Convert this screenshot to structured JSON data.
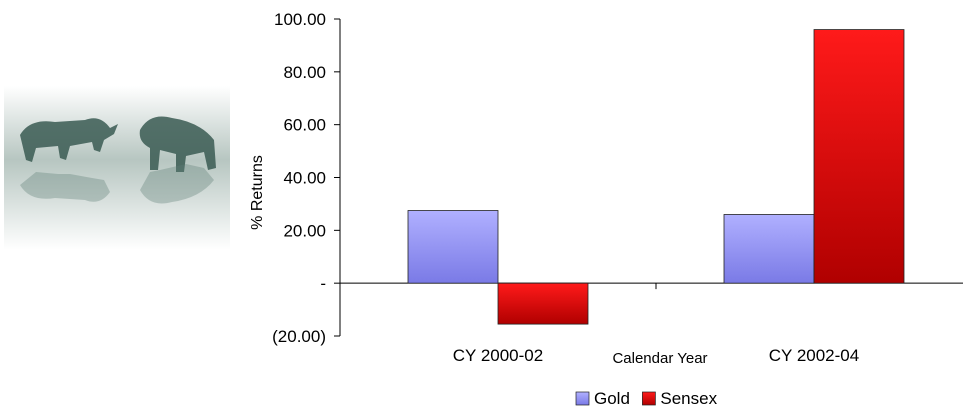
{
  "decor": {
    "image_name": "bull-and-bear-illustration",
    "image_colors": {
      "fade": "#f4f7f6",
      "mid": "#b7c6c1",
      "dark": "#3a5a52"
    }
  },
  "chart_data": {
    "type": "bar",
    "title": "",
    "xlabel": "Calendar Year",
    "ylabel": "% Returns",
    "categories": [
      "CY 2000-02",
      "CY 2002-04"
    ],
    "series": [
      {
        "name": "Gold",
        "values": [
          27.5,
          26.0
        ],
        "color_top": "#b0b0ff",
        "color_bottom": "#7a7ae6"
      },
      {
        "name": "Sensex",
        "values": [
          -15.5,
          96.0
        ],
        "color_top": "#ff1a1a",
        "color_bottom": "#b00000"
      }
    ],
    "ylim": [
      -20,
      100
    ],
    "yticks": [
      -20,
      0,
      20,
      40,
      60,
      80,
      100
    ],
    "ytick_labels": [
      "(20.00)",
      "-",
      "20.00",
      "40.00",
      "60.00",
      "80.00",
      "100.00"
    ],
    "grid": false,
    "legend_position": "bottom"
  }
}
